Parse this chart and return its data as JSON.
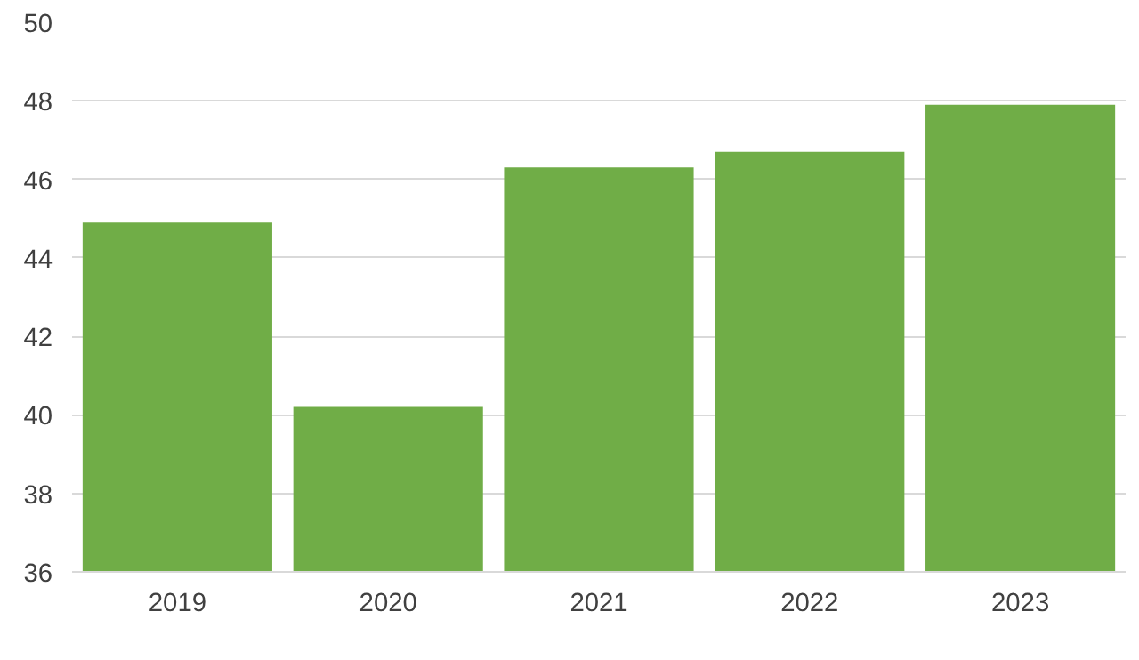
{
  "chart_data": {
    "type": "bar",
    "categories": [
      "2019",
      "2020",
      "2021",
      "2022",
      "2023"
    ],
    "values": [
      44.9,
      40.2,
      46.3,
      46.7,
      47.9
    ],
    "color": "#70ad47",
    "ylim": [
      36,
      50
    ],
    "yticks": [
      36,
      38,
      40,
      42,
      44,
      46,
      48,
      50
    ],
    "grid": "y"
  }
}
